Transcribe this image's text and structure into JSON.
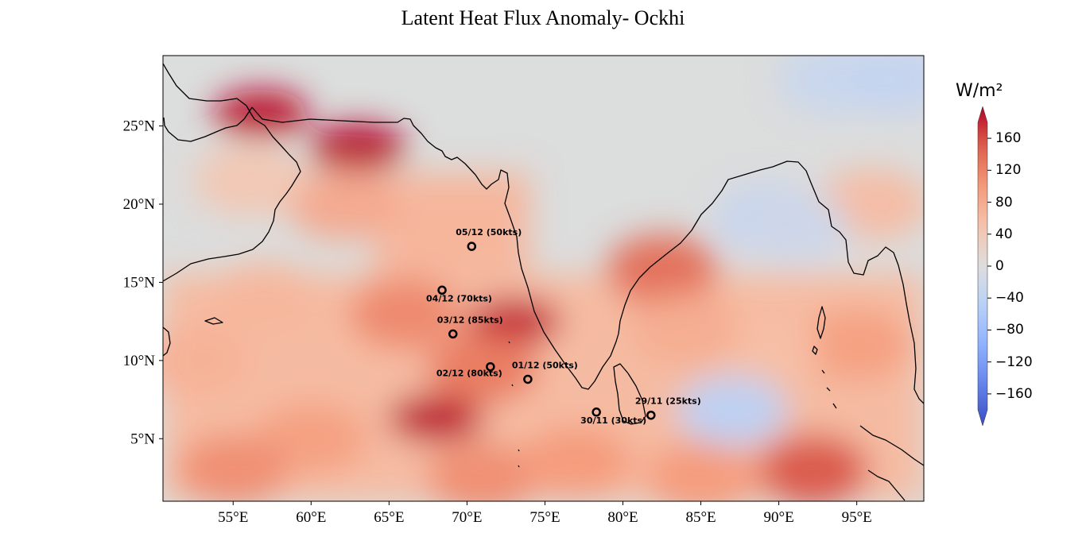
{
  "title": "Latent Heat Flux Anomaly- Ockhi",
  "colorbar": {
    "unit": "W/m²",
    "ticks": [
      "160",
      "120",
      "80",
      "40",
      "0",
      "−40",
      "−80",
      "−120",
      "−160"
    ],
    "cmap": "coolwarm",
    "range": [
      -180,
      180
    ]
  },
  "chart_data": {
    "type": "map",
    "projection": "PlateCarree",
    "extent": {
      "lon": [
        50.5,
        99.3
      ],
      "lat": [
        1.0,
        29.5
      ]
    },
    "x_ticks": [
      {
        "lon": 55,
        "label": "55°E"
      },
      {
        "lon": 60,
        "label": "60°E"
      },
      {
        "lon": 65,
        "label": "65°E"
      },
      {
        "lon": 70,
        "label": "70°E"
      },
      {
        "lon": 75,
        "label": "75°E"
      },
      {
        "lon": 80,
        "label": "80°E"
      },
      {
        "lon": 85,
        "label": "85°E"
      },
      {
        "lon": 90,
        "label": "90°E"
      },
      {
        "lon": 95,
        "label": "95°E"
      }
    ],
    "y_ticks": [
      {
        "lat": 5,
        "label": "5°N"
      },
      {
        "lat": 10,
        "label": "10°N"
      },
      {
        "lat": 15,
        "label": "15°N"
      },
      {
        "lat": 20,
        "label": "20°N"
      },
      {
        "lat": 25,
        "label": "25°N"
      }
    ],
    "track_points": [
      {
        "lon": 81.8,
        "lat": 6.5,
        "label": "29/11 (25kts)"
      },
      {
        "lon": 78.3,
        "lat": 6.7,
        "label": "30/11 (30kts)"
      },
      {
        "lon": 73.9,
        "lat": 8.8,
        "label": "01/12 (50kts)"
      },
      {
        "lon": 71.5,
        "lat": 9.6,
        "label": "02/12 (80kts)"
      },
      {
        "lon": 69.1,
        "lat": 11.7,
        "label": "03/12 (85kts)"
      },
      {
        "lon": 68.4,
        "lat": 14.5,
        "label": "04/12 (70kts)"
      },
      {
        "lon": 70.3,
        "lat": 17.3,
        "label": "05/12 (50kts)"
      }
    ],
    "anomaly_features": [
      {
        "lon": 63.0,
        "lat": 23.6,
        "value": 190
      },
      {
        "lon": 56.8,
        "lat": 25.8,
        "value": 175
      },
      {
        "lon": 68.0,
        "lat": 6.3,
        "value": 175
      },
      {
        "lon": 73.0,
        "lat": 12.5,
        "value": 165
      },
      {
        "lon": 92.2,
        "lat": 3.0,
        "value": 140
      },
      {
        "lon": 62.0,
        "lat": 20.0,
        "value": 75
      },
      {
        "lon": 66.0,
        "lat": 13.0,
        "value": 105
      },
      {
        "lon": 71.0,
        "lat": 9.5,
        "value": 115
      },
      {
        "lon": 60.0,
        "lat": 5.0,
        "value": 85
      },
      {
        "lon": 55.0,
        "lat": 3.0,
        "value": 100
      },
      {
        "lon": 71.0,
        "lat": 2.5,
        "value": 100
      },
      {
        "lon": 82.5,
        "lat": 15.8,
        "value": 125
      },
      {
        "lon": 95.0,
        "lat": 11.0,
        "value": 85
      },
      {
        "lon": 89.0,
        "lat": 10.5,
        "value": 50
      },
      {
        "lon": 84.0,
        "lat": 12.0,
        "value": 70
      },
      {
        "lon": 85.0,
        "lat": 2.5,
        "value": 90
      },
      {
        "lon": 77.0,
        "lat": 3.5,
        "value": 90
      },
      {
        "lon": 57.0,
        "lat": 14.0,
        "value": 60
      },
      {
        "lon": 52.5,
        "lat": 10.0,
        "value": 65
      },
      {
        "lon": 56.0,
        "lat": 21.5,
        "value": 40
      },
      {
        "lon": 96.0,
        "lat": 20.0,
        "value": 55
      },
      {
        "lon": 87.0,
        "lat": 6.8,
        "value": -40
      },
      {
        "lon": 89.5,
        "lat": 19.0,
        "value": -30
      },
      {
        "lon": 91.0,
        "lat": 18.5,
        "value": -20
      },
      {
        "lon": 93.5,
        "lat": 28.0,
        "value": -25
      },
      {
        "lon": 97.5,
        "lat": 28.0,
        "value": -30
      }
    ]
  }
}
